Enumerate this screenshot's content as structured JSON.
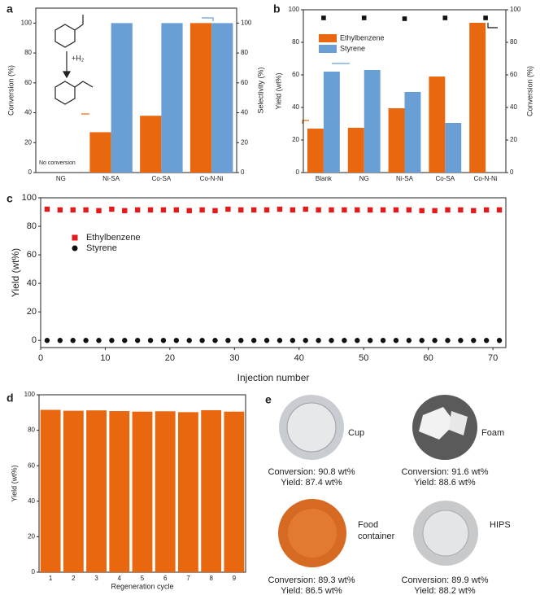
{
  "chart_data": [
    {
      "type": "bar",
      "label": "a",
      "categories": [
        "NG",
        "Ni-SA",
        "Co-SA",
        "Co-N-Ni"
      ],
      "series": [
        {
          "name": "Conversion",
          "color": "#e8670f",
          "values": [
            0,
            27,
            38,
            100
          ]
        },
        {
          "name": "Selectivity",
          "color": "#6a9fd6",
          "axis": "y2",
          "values": [
            null,
            100,
            100,
            100
          ]
        }
      ],
      "ylabel": "Conversion (%)",
      "y2label": "Selectivity (%)",
      "ylabel_color": "#e8670f",
      "y2label_color": "#6a9fd6",
      "ylim": [
        0,
        110
      ],
      "yticks": [
        0,
        20,
        40,
        60,
        80,
        100
      ],
      "y2lim": [
        0,
        110
      ],
      "y2ticks": [
        0,
        20,
        40,
        60,
        80,
        100
      ],
      "annotations": [
        "No conversion",
        "+H₂"
      ]
    },
    {
      "type": "bar",
      "label": "b",
      "categories": [
        "Blank",
        "NG",
        "Ni-SA",
        "Co-SA",
        "Co-N-Ni"
      ],
      "series": [
        {
          "name": "Ethylbenzene",
          "color": "#e8670f",
          "values": [
            27,
            27.5,
            39.5,
            59,
            92
          ]
        },
        {
          "name": "Styrene",
          "color": "#6a9fd6",
          "values": [
            62,
            63,
            49.5,
            30.5,
            null
          ]
        },
        {
          "type": "scatter",
          "marker": "square",
          "color": "#111",
          "axis": "y2",
          "values": [
            95,
            95,
            94.5,
            95,
            95
          ]
        }
      ],
      "ylabel": "Yield (wt%)",
      "y2label": "Conversion (%)",
      "ylabel_color": "#e8670f",
      "y2label_color": "#222",
      "ylim": [
        0,
        100
      ],
      "yticks": [
        0,
        20,
        40,
        60,
        80,
        100
      ],
      "y2lim": [
        0,
        100
      ],
      "y2ticks": [
        0,
        20,
        40,
        60,
        80,
        100
      ]
    },
    {
      "type": "scatter",
      "label": "c",
      "x": [
        1,
        3,
        5,
        7,
        9,
        11,
        13,
        15,
        17,
        19,
        21,
        23,
        25,
        27,
        29,
        31,
        33,
        35,
        37,
        39,
        41,
        43,
        45,
        47,
        49,
        51,
        53,
        55,
        57,
        59,
        61,
        63,
        65,
        67,
        69,
        71
      ],
      "series": [
        {
          "name": "Ethylbenzene",
          "color": "#e31a1c",
          "marker": "square",
          "values": [
            92,
            91.5,
            91.5,
            91.5,
            91,
            92,
            91,
            91.5,
            91.5,
            91.5,
            91.5,
            91,
            91.5,
            91,
            92,
            91.5,
            91.5,
            91.5,
            92,
            91.5,
            92,
            91.5,
            91.5,
            91.5,
            91.5,
            91.5,
            91.5,
            91.5,
            91.5,
            91,
            91,
            91.5,
            91.5,
            91,
            91.5,
            91.5
          ]
        },
        {
          "name": "Styrene",
          "color": "#111",
          "marker": "circle",
          "values": [
            0,
            0,
            0,
            0,
            0,
            0,
            0,
            0,
            0,
            0,
            0,
            0,
            0,
            0,
            0,
            0,
            0,
            0,
            0,
            0,
            0,
            0,
            0,
            0,
            0,
            0,
            0,
            0,
            0,
            0,
            0,
            0,
            0,
            0,
            0,
            0
          ]
        }
      ],
      "xlabel": "Injection number",
      "ylabel": "Yield (wt%)",
      "xlim": [
        0,
        72
      ],
      "xticks": [
        0,
        10,
        20,
        30,
        40,
        50,
        60,
        70
      ],
      "ylim": [
        -5,
        100
      ],
      "yticks": [
        0,
        20,
        40,
        60,
        80,
        100
      ]
    },
    {
      "type": "bar",
      "label": "d",
      "categories": [
        "1",
        "2",
        "3",
        "4",
        "5",
        "6",
        "7",
        "8",
        "9"
      ],
      "series": [
        {
          "color": "#e8670f",
          "values": [
            91.5,
            91,
            91.2,
            90.8,
            90.5,
            90.7,
            90.2,
            91.3,
            90.5
          ]
        }
      ],
      "xlabel": "Regeneration cycle",
      "ylabel": "Yield (wt%)",
      "ylim": [
        0,
        100
      ],
      "yticks": [
        0,
        20,
        40,
        60,
        80,
        100
      ]
    }
  ],
  "panel_e": {
    "label": "e",
    "items": [
      {
        "name": [
          "Cup"
        ],
        "conversion": "Conversion: 90.8 wt%",
        "yield": "Yield: 87.4 wt%"
      },
      {
        "name": [
          "Foam"
        ],
        "conversion": "Conversion: 91.6 wt%",
        "yield": "Yield: 88.6 wt%"
      },
      {
        "name": [
          "Food",
          "container"
        ],
        "conversion": "Conversion: 89.3 wt%",
        "yield": "Yield: 86.5 wt%"
      },
      {
        "name": [
          "HIPS"
        ],
        "conversion": "Conversion: 89.9 wt%",
        "yield": "Yield: 88.2 wt%"
      }
    ]
  }
}
